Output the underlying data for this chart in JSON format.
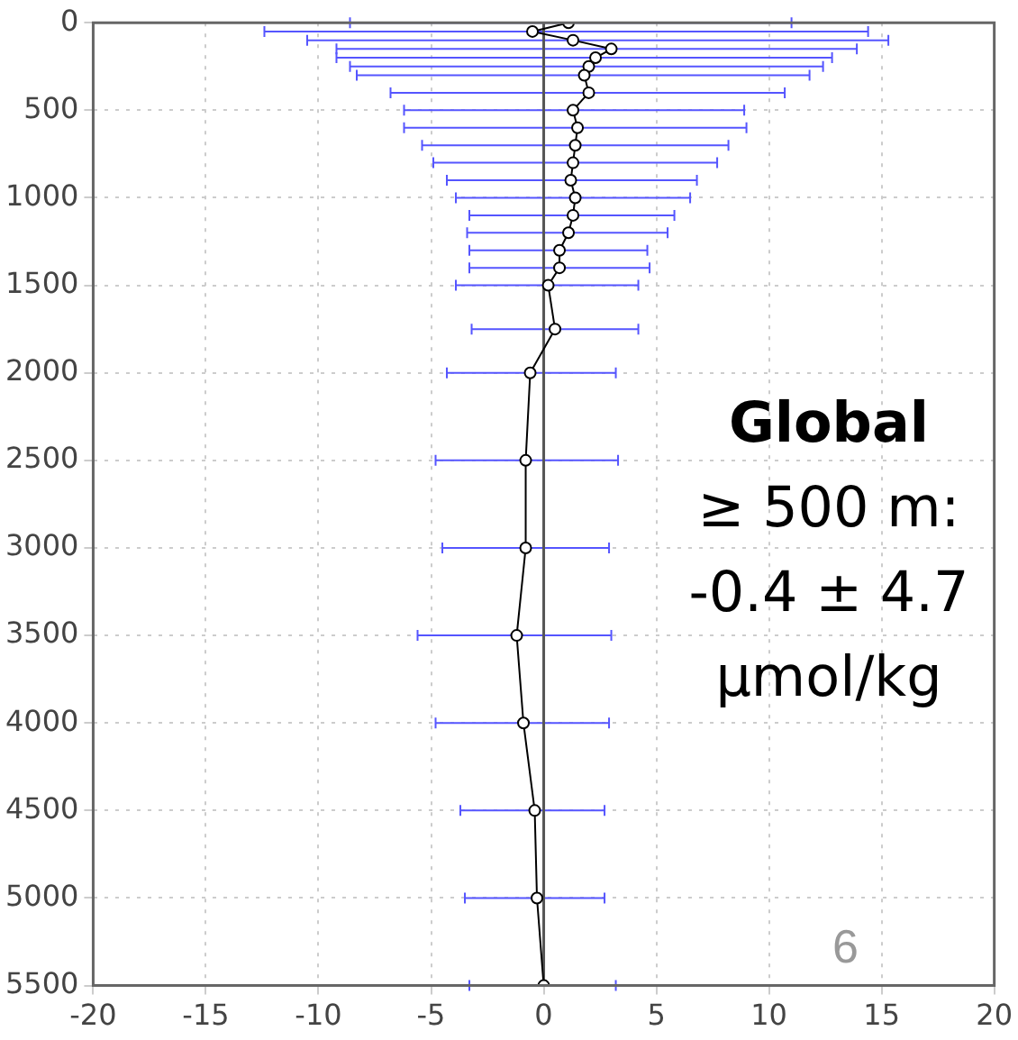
{
  "chart_data": {
    "type": "line",
    "ylim": [
      5500,
      0
    ],
    "yticks": [
      0,
      500,
      1000,
      1500,
      2000,
      2500,
      3000,
      3500,
      4000,
      4500,
      5000,
      5500
    ],
    "xlim": [
      -20,
      20
    ],
    "xticks": [
      -20,
      -15,
      -10,
      -5,
      0,
      5,
      10,
      15,
      20
    ],
    "grid": true,
    "legend": false,
    "marker": "circle",
    "line_style": "solid",
    "series": [
      {
        "color": "#000000",
        "x": [
          1.1,
          -0.5,
          1.3,
          3.0,
          2.3,
          2.0,
          1.8,
          2.0,
          1.3,
          1.5,
          1.4,
          1.3,
          1.2,
          1.4,
          1.3,
          1.1,
          0.7,
          0.7,
          0.2,
          0.5,
          -0.6,
          -0.8,
          -0.8,
          -1.2,
          -0.9,
          -0.4,
          -0.3,
          0.0
        ],
        "values": [
          0,
          50,
          100,
          150,
          200,
          250,
          300,
          400,
          500,
          600,
          700,
          800,
          900,
          1000,
          1100,
          1200,
          1300,
          1400,
          1500,
          1750,
          2000,
          2500,
          3000,
          3500,
          4000,
          4500,
          5000,
          5500
        ],
        "xerrors": [
          [
            -8.6,
            11.0
          ],
          [
            -12.4,
            14.4
          ],
          [
            -10.5,
            15.3
          ],
          [
            -9.2,
            13.9
          ],
          [
            -9.2,
            12.8
          ],
          [
            -8.6,
            12.4
          ],
          [
            -8.3,
            11.8
          ],
          [
            -6.8,
            10.7
          ],
          [
            -6.2,
            8.9
          ],
          [
            -6.2,
            9.0
          ],
          [
            -5.4,
            8.2
          ],
          [
            -4.9,
            7.7
          ],
          [
            -4.3,
            6.8
          ],
          [
            -3.9,
            6.5
          ],
          [
            -3.3,
            5.8
          ],
          [
            -3.4,
            5.5
          ],
          [
            -3.3,
            4.6
          ],
          [
            -3.3,
            4.7
          ],
          [
            -3.9,
            4.2
          ],
          [
            -3.2,
            4.2
          ],
          [
            -4.3,
            3.2
          ],
          [
            -4.8,
            3.3
          ],
          [
            -4.5,
            2.9
          ],
          [
            -5.6,
            3.0
          ],
          [
            -4.8,
            2.9
          ],
          [
            -3.7,
            2.7
          ],
          [
            -3.5,
            2.7
          ],
          [
            -3.3,
            3.2
          ]
        ]
      }
    ],
    "ref_lines": [
      {
        "axis": "x",
        "value": 0,
        "color": "#555555"
      }
    ],
    "annotations": [
      "Global",
      "≥ 500 m:",
      "-0.4 ± 4.7",
      "µmol/kg",
      "6"
    ]
  }
}
